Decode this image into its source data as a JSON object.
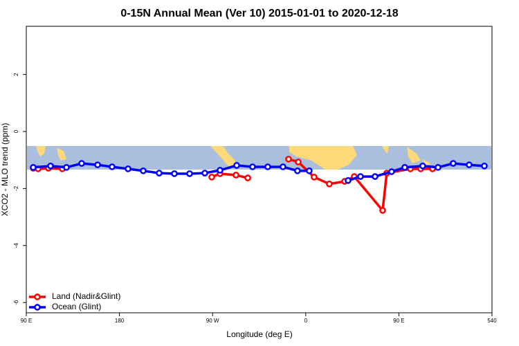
{
  "chart_data": {
    "type": "line",
    "title": "0-15N Annual Mean (Ver 10)   2015-01-01 to 2020-12-18",
    "x_label": "Longitude (deg E)",
    "y_label": "XCO2 - MLO trend (ppm)",
    "xlim": [
      90,
      540
    ],
    "xticks": [
      {
        "value": 90,
        "label": "90 E"
      },
      180,
      {
        "value": 270,
        "label": "90 W"
      },
      {
        "value": 360,
        "label": "0"
      },
      {
        "value": 450,
        "label": "90 E"
      },
      540
    ],
    "ylim": [
      -6.36,
      3.69
    ],
    "yticks": [
      2,
      0,
      -2,
      -4,
      -6
    ],
    "legend": "bottom-left",
    "series": [
      {
        "name": "Land (Nadir&Glint)",
        "color": "#ff0000",
        "x": [
          96.7,
          101.4,
          111.4,
          124.8,
          null,
          269.2,
          277.2,
          292.6,
          304,
          null,
          343.4,
          352.8,
          368.1,
          382.8,
          397.6,
          406.9,
          434.3,
          438.3,
          461.1,
          471.1,
          482.5
        ],
        "values": [
          -1.29,
          -1.31,
          -1.29,
          -1.31,
          null,
          -1.6,
          -1.48,
          -1.53,
          -1.63,
          null,
          -0.97,
          -1.07,
          -1.6,
          -1.84,
          -1.75,
          -1.58,
          -2.77,
          -1.46,
          -1.31,
          -1.31,
          -1.31
        ]
      },
      {
        "name": "Ocean (Glint)",
        "color": "#0000ff",
        "x": [
          96.7,
          113.4,
          128.8,
          143.5,
          158.9,
          172.9,
          188.3,
          203,
          218.4,
          233.1,
          247.8,
          262.5,
          277.2,
          293.3,
          308.6,
          323.3,
          338,
          352,
          363.4,
          null,
          400.9,
          412.9,
          427,
          443,
          455.7,
          473,
          487.8,
          502.5,
          517.9,
          532.6
        ],
        "values": [
          -1.26,
          -1.21,
          -1.26,
          -1.12,
          -1.17,
          -1.24,
          -1.31,
          -1.38,
          -1.46,
          -1.48,
          -1.48,
          -1.46,
          -1.36,
          -1.19,
          -1.24,
          -1.24,
          -1.24,
          -1.38,
          -1.38,
          null,
          -1.72,
          -1.58,
          -1.58,
          -1.41,
          -1.26,
          -1.21,
          -1.26,
          -1.12,
          -1.17,
          -1.21
        ]
      }
    ]
  }
}
